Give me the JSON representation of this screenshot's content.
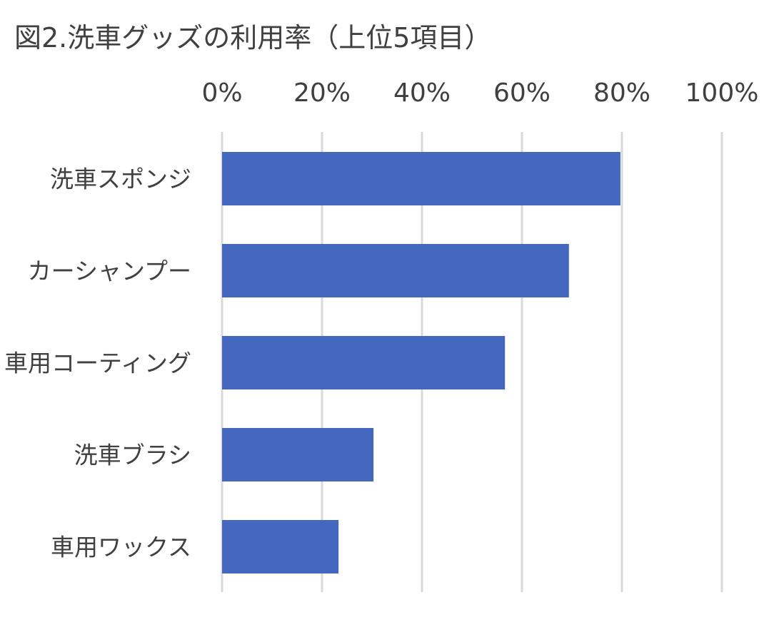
{
  "chart_data": {
    "type": "bar",
    "orientation": "horizontal",
    "title": "図2.洗車グッズの利用率（上位5項目）",
    "categories": [
      "洗車スポンジ",
      "カーシャンプー",
      "車用コーティング",
      "洗車ブラシ",
      "車用ワックス"
    ],
    "values": [
      79.7,
      69.4,
      56.6,
      30.3,
      23.3
    ],
    "xlim": [
      0,
      100
    ],
    "xticks": [
      "0%",
      "20%",
      "40%",
      "60%",
      "80%",
      "100%"
    ],
    "xaxis_position": "top",
    "grid": true,
    "bar_color": "#4468BE",
    "grid_color": "#D9D9D9",
    "xlabel": "",
    "ylabel": ""
  }
}
